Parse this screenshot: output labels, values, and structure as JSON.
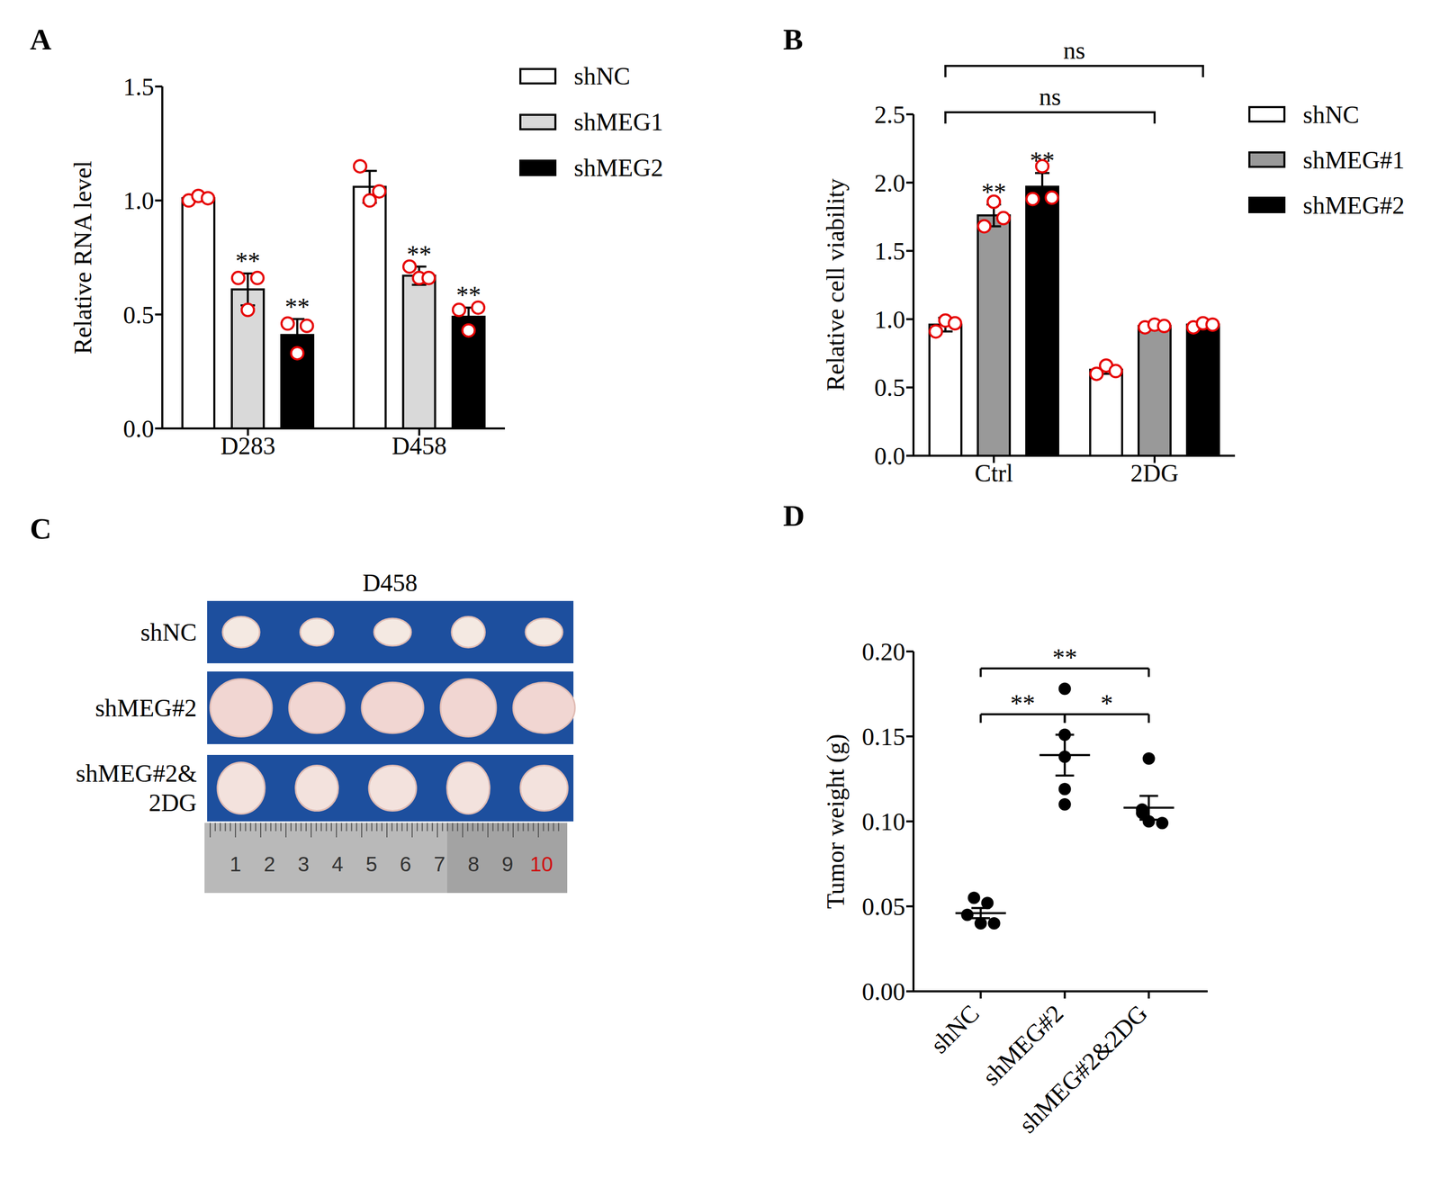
{
  "chart_data": [
    {
      "panel": "A",
      "type": "bar",
      "y_label": "Relative RNA level",
      "categories": [
        "D283",
        "D458"
      ],
      "ylim": [
        0,
        1.5
      ],
      "yticks": [
        {
          "value": 0,
          "label": "0.0"
        },
        0.5,
        {
          "value": 1,
          "label": "1.0"
        },
        1.5
      ],
      "legend": "right",
      "series": [
        {
          "name": "shNC",
          "color": "#ffffff",
          "values": [
            1.01,
            1.06
          ],
          "errors": [
            0.01,
            0.07
          ],
          "points": [
            [
              1.0,
              1.02,
              1.01
            ],
            [
              1.15,
              1.0,
              1.04
            ]
          ]
        },
        {
          "name": "shMEG1",
          "color": "#d9d9d9",
          "values": [
            0.61,
            0.67
          ],
          "errors": [
            0.07,
            0.04
          ],
          "points": [
            [
              0.66,
              0.52,
              0.66
            ],
            [
              0.71,
              0.66,
              0.66
            ]
          ],
          "significance": [
            "**",
            "**"
          ]
        },
        {
          "name": "shMEG2",
          "color": "#000000",
          "values": [
            0.41,
            0.49
          ],
          "errors": [
            0.07,
            0.04
          ],
          "points": [
            [
              0.46,
              0.33,
              0.45
            ],
            [
              0.52,
              0.43,
              0.53
            ]
          ],
          "significance": [
            "**",
            "**"
          ]
        }
      ]
    },
    {
      "panel": "B",
      "type": "bar",
      "y_label": "Relative cell viability",
      "categories": [
        "Ctrl",
        "2DG"
      ],
      "ylim": [
        0,
        2.5
      ],
      "yticks": [
        {
          "value": 0,
          "label": "0.0"
        },
        0.5,
        {
          "value": 1,
          "label": "1.0"
        },
        1.5,
        {
          "value": 2,
          "label": "2.0"
        },
        2.5
      ],
      "legend": "right",
      "series": [
        {
          "name": "shNC",
          "color": "#ffffff",
          "values": [
            0.96,
            0.63
          ],
          "errors": [
            0.05,
            0.03
          ],
          "points": [
            [
              0.91,
              0.99,
              0.97
            ],
            [
              0.6,
              0.66,
              0.62
            ]
          ]
        },
        {
          "name": "shMEG#1",
          "color": "#999999",
          "values": [
            1.76,
            0.95
          ],
          "errors": [
            0.08,
            0.01
          ],
          "points": [
            [
              1.68,
              1.86,
              1.74
            ],
            [
              0.94,
              0.96,
              0.95
            ]
          ],
          "significance": [
            "**",
            null
          ]
        },
        {
          "name": "shMEG#2",
          "color": "#000000",
          "values": [
            1.97,
            0.96
          ],
          "errors": [
            0.1,
            0.02
          ],
          "points": [
            [
              1.88,
              2.12,
              1.89
            ],
            [
              0.94,
              0.97,
              0.96
            ]
          ],
          "significance": [
            "**",
            null
          ]
        }
      ],
      "comparisons": [
        {
          "from": [
            "Ctrl",
            "shNC"
          ],
          "to": [
            "2DG",
            "shMEG#1"
          ],
          "label": "ns"
        },
        {
          "from": [
            "Ctrl",
            "shNC"
          ],
          "to": [
            "2DG",
            "shMEG#2"
          ],
          "label": "ns"
        }
      ]
    },
    {
      "panel": "D",
      "type": "scatter",
      "y_label": "Tumor weight (g)",
      "categories": [
        "shNC",
        "shMEG#2",
        "shMEG#2&2DG"
      ],
      "ylim": [
        0,
        0.2
      ],
      "yticks": [
        {
          "value": 0,
          "label": "0.00"
        },
        0.05,
        {
          "value": 0.1,
          "label": "0.10"
        },
        0.15,
        {
          "value": 0.2,
          "label": "0.20"
        }
      ],
      "color": "#000000",
      "points": [
        [
          0.055,
          0.052,
          0.045,
          0.04,
          0.04
        ],
        [
          0.178,
          0.151,
          0.138,
          0.119,
          0.11
        ],
        [
          0.137,
          0.107,
          0.105,
          0.1,
          0.099
        ]
      ],
      "means": [
        0.046,
        0.139,
        0.108
      ],
      "sem": [
        0.003,
        0.012,
        0.007
      ],
      "comparisons": [
        {
          "from": "shNC",
          "to": "shMEG#2",
          "label": "**"
        },
        {
          "from": "shMEG#2",
          "to": "shMEG#2&2DG",
          "label": "*"
        },
        {
          "from": "shNC",
          "to": "shMEG#2&2DG",
          "label": "**"
        }
      ]
    }
  ],
  "image": {
    "panel": "C",
    "title": "D458",
    "rows": [
      [
        "shNC"
      ],
      [
        "shMEG#2"
      ],
      [
        "shMEG#2&",
        "2DG"
      ]
    ],
    "tumors_per_row": 5,
    "ruler_labels": [
      1,
      2,
      3,
      4,
      5,
      6,
      7,
      8,
      9,
      10
    ]
  }
}
